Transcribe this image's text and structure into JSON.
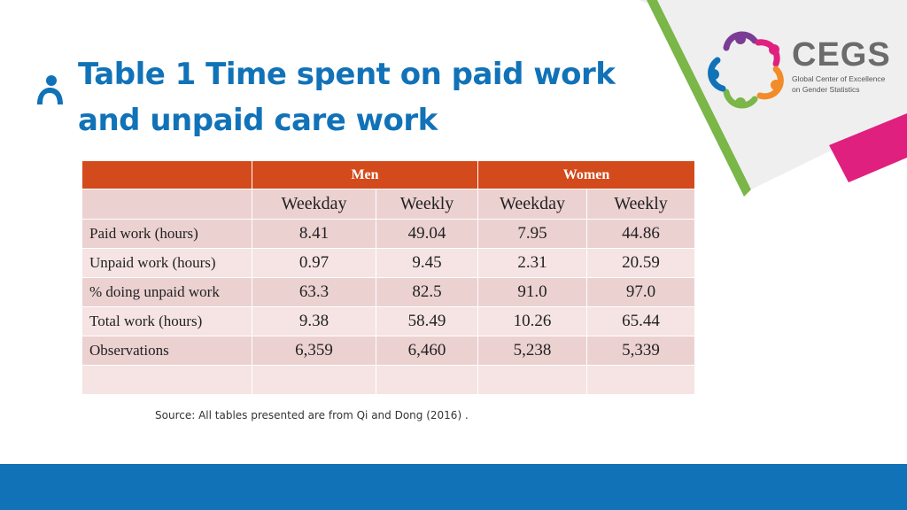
{
  "slide": {
    "title": "Table 1 Time spent on paid work and unpaid care work",
    "source": "Source: All tables presented are from Qi and Dong (2016) ."
  },
  "logo": {
    "name": "CEGS",
    "line1": "Global Center of Excellence",
    "line2": "on Gender Statistics"
  },
  "colors": {
    "accent_blue": "#1172b8",
    "header_orange": "#d34a1c",
    "row_pink": "#ecd1d1",
    "row_light": "#f5e4e3",
    "deco_green": "#7ab648",
    "deco_magenta": "#e0207f"
  },
  "table": {
    "groups": [
      "Men",
      "Women"
    ],
    "subheaders": [
      "Weekday",
      "Weekly",
      "Weekday",
      "Weekly"
    ],
    "rows": [
      {
        "label": "Paid work (hours)",
        "values": [
          "8.41",
          "49.04",
          "7.95",
          "44.86"
        ]
      },
      {
        "label": "Unpaid work (hours)",
        "values": [
          "0.97",
          "9.45",
          "2.31",
          "20.59"
        ]
      },
      {
        "label": "% doing unpaid work",
        "values": [
          "63.3",
          "82.5",
          "91.0",
          "97.0"
        ]
      },
      {
        "label": "Total work (hours)",
        "values": [
          "9.38",
          "58.49",
          "10.26",
          "65.44"
        ]
      },
      {
        "label": "Observations",
        "values": [
          "6,359",
          "6,460",
          "5,238",
          "5,339"
        ]
      },
      {
        "label": "",
        "values": [
          "",
          "",
          "",
          ""
        ]
      }
    ]
  }
}
